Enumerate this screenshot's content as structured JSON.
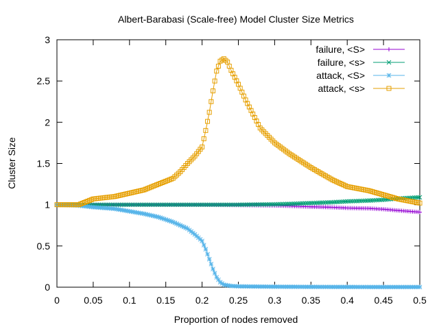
{
  "chart_data": {
    "type": "line",
    "title": "Albert-Barabasi (Scale-free) Model Cluster Size Metrics",
    "xlabel": "Proportion of nodes removed",
    "ylabel": "Cluster Size",
    "xlim": [
      0,
      0.5
    ],
    "ylim": [
      0,
      3
    ],
    "xticks": [
      "0",
      "0.05",
      "0.1",
      "0.15",
      "0.2",
      "0.25",
      "0.3",
      "0.35",
      "0.4",
      "0.45",
      "0.5"
    ],
    "yticks": [
      "0",
      "0.5",
      "1",
      "1.5",
      "2",
      "2.5",
      "3"
    ],
    "grid": false,
    "legend_position": "top-right",
    "series": [
      {
        "name": "failure, <S>",
        "color": "#9400d3",
        "marker": "plus",
        "x": [
          0,
          0.05,
          0.1,
          0.15,
          0.2,
          0.25,
          0.3,
          0.32,
          0.35,
          0.38,
          0.4,
          0.43,
          0.45,
          0.47,
          0.5
        ],
        "y": [
          1.0,
          1.0,
          1.0,
          0.999,
          0.998,
          0.995,
          0.99,
          0.985,
          0.975,
          0.968,
          0.96,
          0.955,
          0.945,
          0.93,
          0.91
        ]
      },
      {
        "name": "failure, <s>",
        "color": "#009e73",
        "marker": "cross",
        "x": [
          0,
          0.05,
          0.1,
          0.15,
          0.2,
          0.25,
          0.3,
          0.32,
          0.35,
          0.38,
          0.4,
          0.43,
          0.45,
          0.47,
          0.5
        ],
        "y": [
          1.0,
          1.0,
          1.0,
          1.0,
          1.0,
          1.0,
          1.005,
          1.01,
          1.02,
          1.03,
          1.04,
          1.05,
          1.06,
          1.075,
          1.09
        ]
      },
      {
        "name": "attack, <S>",
        "color": "#56b4e9",
        "marker": "star",
        "x": [
          0,
          0.03,
          0.05,
          0.08,
          0.1,
          0.12,
          0.14,
          0.16,
          0.18,
          0.19,
          0.2,
          0.205,
          0.21,
          0.215,
          0.22,
          0.225,
          0.23,
          0.24,
          0.25,
          0.3,
          0.35,
          0.4,
          0.45,
          0.5
        ],
        "y": [
          1.0,
          0.99,
          0.97,
          0.95,
          0.92,
          0.89,
          0.85,
          0.79,
          0.71,
          0.64,
          0.56,
          0.46,
          0.34,
          0.22,
          0.12,
          0.06,
          0.03,
          0.015,
          0.01,
          0.006,
          0.004,
          0.003,
          0.002,
          0.002
        ]
      },
      {
        "name": "attack, <s>",
        "color": "#e69f00",
        "marker": "square",
        "x": [
          0,
          0.03,
          0.05,
          0.08,
          0.1,
          0.12,
          0.14,
          0.16,
          0.17,
          0.18,
          0.19,
          0.2,
          0.205,
          0.21,
          0.215,
          0.22,
          0.225,
          0.23,
          0.235,
          0.24,
          0.25,
          0.26,
          0.27,
          0.28,
          0.3,
          0.32,
          0.35,
          0.38,
          0.4,
          0.43,
          0.45,
          0.47,
          0.5
        ],
        "y": [
          1.0,
          1.0,
          1.07,
          1.1,
          1.14,
          1.18,
          1.25,
          1.32,
          1.4,
          1.5,
          1.59,
          1.7,
          1.9,
          2.12,
          2.38,
          2.62,
          2.74,
          2.77,
          2.73,
          2.63,
          2.46,
          2.27,
          2.1,
          1.93,
          1.75,
          1.62,
          1.45,
          1.3,
          1.22,
          1.17,
          1.12,
          1.07,
          1.02
        ]
      }
    ]
  }
}
